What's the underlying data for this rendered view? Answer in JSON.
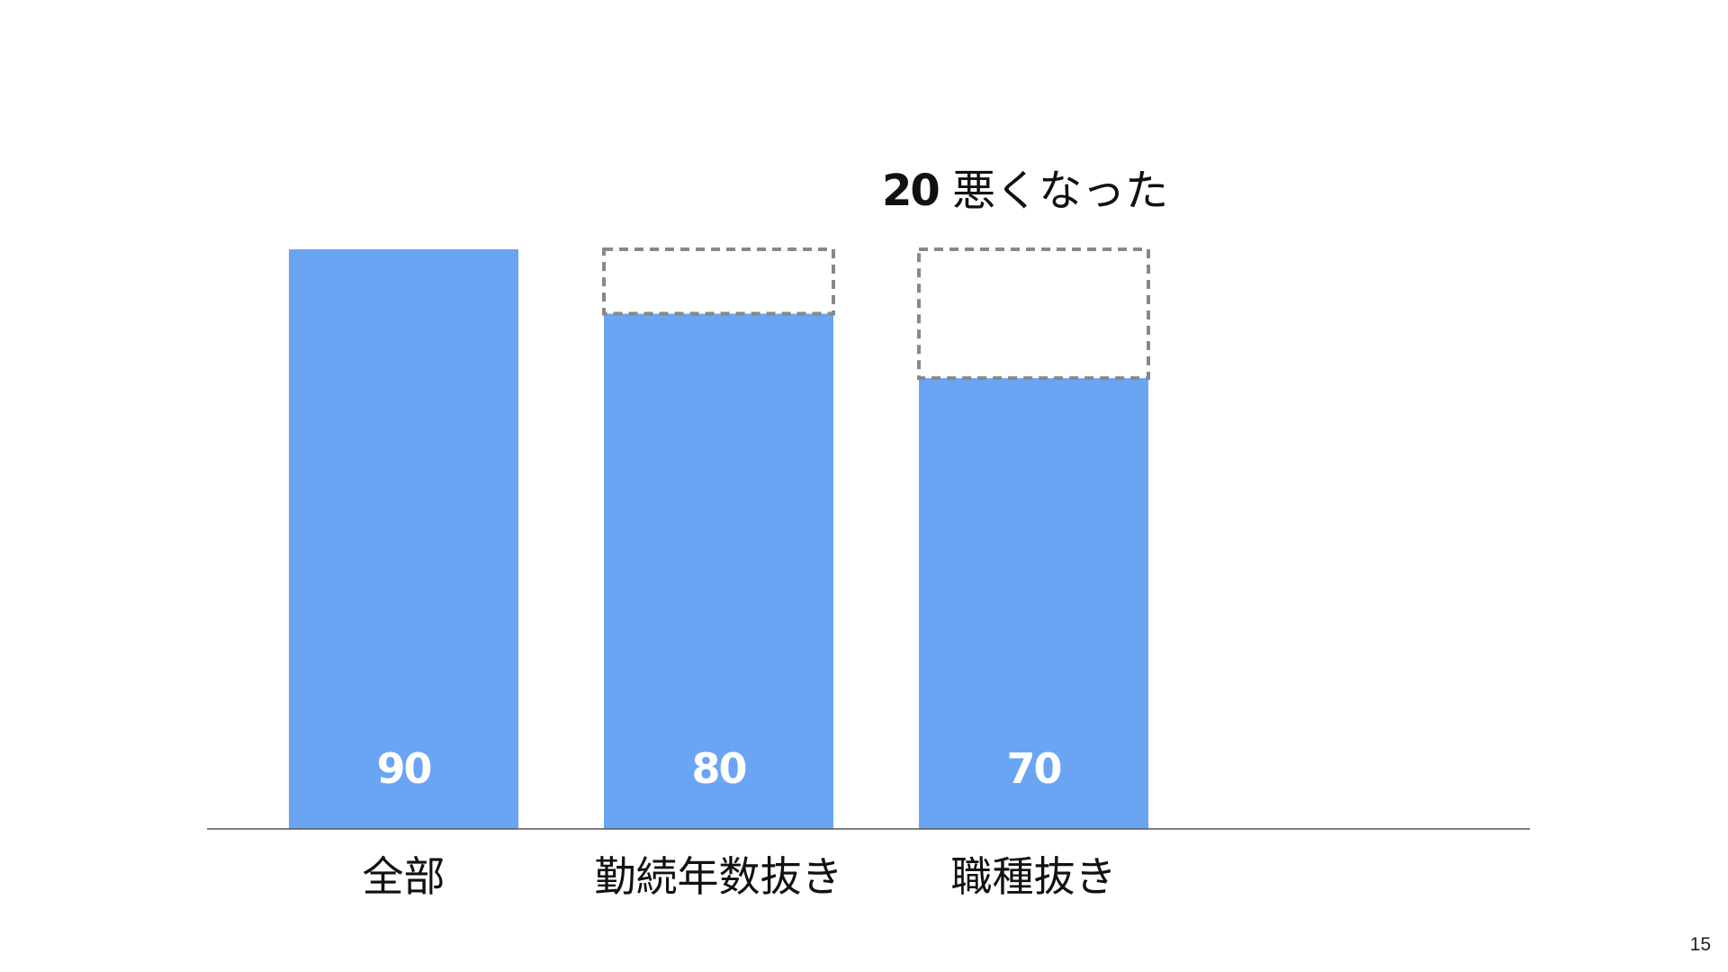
{
  "slide": {
    "page_number": "15"
  },
  "annotation": {
    "value": "20",
    "text": "悪くなった"
  },
  "chart_data": {
    "type": "bar",
    "categories": [
      "全部",
      "勤続年数抜き",
      "職種抜き"
    ],
    "values": [
      90,
      80,
      70
    ],
    "value_labels": [
      "90",
      "80",
      "70"
    ],
    "reference_value": 90,
    "dashed_gap": [
      0,
      10,
      20
    ],
    "ylim": [
      0,
      100
    ],
    "title": "",
    "xlabel": "",
    "ylabel": "",
    "grid": false,
    "colors": {
      "bar": "#69a5f3",
      "gap_outline": "#888888",
      "value_label": "#ffffff",
      "category_label": "#111111",
      "axis": "#555555"
    }
  }
}
